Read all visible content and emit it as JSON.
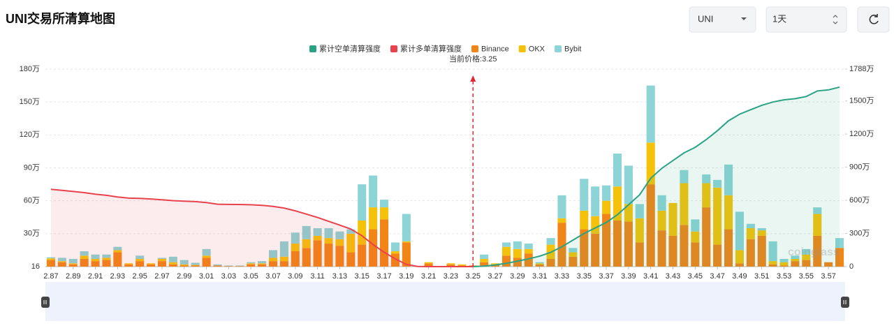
{
  "header": {
    "title": "UNI交易所清算地图",
    "symbol": "UNI",
    "interval": "1天"
  },
  "chart_data": {
    "type": "bar",
    "x": [
      2.87,
      2.88,
      2.89,
      2.9,
      2.91,
      2.92,
      2.93,
      2.94,
      2.95,
      2.96,
      2.97,
      2.98,
      2.99,
      3.0,
      3.01,
      3.02,
      3.03,
      3.04,
      3.05,
      3.06,
      3.07,
      3.08,
      3.09,
      3.1,
      3.11,
      3.12,
      3.13,
      3.14,
      3.15,
      3.16,
      3.17,
      3.18,
      3.19,
      3.2,
      3.21,
      3.22,
      3.23,
      3.24,
      3.25,
      3.26,
      3.27,
      3.28,
      3.29,
      3.3,
      3.31,
      3.32,
      3.33,
      3.34,
      3.35,
      3.36,
      3.37,
      3.38,
      3.39,
      3.4,
      3.41,
      3.42,
      3.43,
      3.44,
      3.45,
      3.46,
      3.47,
      3.48,
      3.49,
      3.5,
      3.51,
      3.52,
      3.53,
      3.54,
      3.55,
      3.56,
      3.57,
      3.58
    ],
    "xlim": [
      2.865,
      3.585
    ],
    "xticks": [
      2.87,
      2.89,
      2.91,
      2.93,
      2.95,
      2.97,
      2.99,
      3.01,
      3.03,
      3.05,
      3.07,
      3.09,
      3.11,
      3.13,
      3.15,
      3.17,
      3.19,
      3.21,
      3.23,
      3.25,
      3.27,
      3.29,
      3.31,
      3.33,
      3.35,
      3.37,
      3.39,
      3.41,
      3.43,
      3.45,
      3.47,
      3.49,
      3.51,
      3.53,
      3.55,
      3.57
    ],
    "ylim": [
      16,
      1800000
    ],
    "yticks": [
      16,
      {
        "value": 300000,
        "label": "30万"
      },
      {
        "value": 600000,
        "label": "60万"
      },
      {
        "value": 900000,
        "label": "90万"
      },
      {
        "value": 1200000,
        "label": "120万"
      },
      {
        "value": 1500000,
        "label": "150万"
      },
      {
        "value": 1800000,
        "label": "180万"
      }
    ],
    "y2lim": [
      0,
      17880000
    ],
    "y2ticks": [
      0,
      {
        "value": 3000000,
        "label": "300万"
      },
      {
        "value": 6000000,
        "label": "600万"
      },
      {
        "value": 9000000,
        "label": "900万"
      },
      {
        "value": 12000000,
        "label": "1200万"
      },
      {
        "value": 15000000,
        "label": "1500万"
      },
      {
        "value": 17880000,
        "label": "1788万"
      }
    ],
    "grid": true,
    "current_price": 3.25,
    "current_price_label": "当前价格:3.25",
    "watermark": "coinglass",
    "series": [
      {
        "name": "累计空单清算强度",
        "type": "line",
        "axis": "y2",
        "color": "#2aa384",
        "fill": "rgba(42,163,132,0.10)",
        "values": [
          null,
          null,
          null,
          null,
          null,
          null,
          null,
          null,
          null,
          null,
          null,
          null,
          null,
          null,
          null,
          null,
          null,
          null,
          null,
          null,
          null,
          null,
          null,
          null,
          null,
          null,
          null,
          null,
          null,
          null,
          null,
          null,
          null,
          null,
          null,
          null,
          null,
          null,
          0,
          50000,
          150000,
          300000,
          500000,
          700000,
          950000,
          1300000,
          1800000,
          2400000,
          3000000,
          3500000,
          4000000,
          4700000,
          5600000,
          6500000,
          8000000,
          8900000,
          9600000,
          10300000,
          10800000,
          11500000,
          12300000,
          13200000,
          13800000,
          14200000,
          14600000,
          14900000,
          15100000,
          15200000,
          15400000,
          15900000,
          16000000,
          16250000
        ]
      },
      {
        "name": "累计多单清算强度",
        "type": "line",
        "axis": "y2",
        "color": "#e8424d",
        "fill": "rgba(232,66,77,0.10)",
        "values": [
          7000000,
          6900000,
          6800000,
          6700000,
          6550000,
          6450000,
          6300000,
          6200000,
          6170000,
          6120000,
          6050000,
          5970000,
          5920000,
          5880000,
          5800000,
          5650000,
          5630000,
          5620000,
          5600000,
          5550000,
          5450000,
          5300000,
          5050000,
          4750000,
          4450000,
          4100000,
          3750000,
          3400000,
          2800000,
          2000000,
          1300000,
          700000,
          200000,
          20000,
          0,
          0,
          0,
          0,
          0,
          null,
          null,
          null,
          null,
          null,
          null,
          null,
          null,
          null,
          null,
          null,
          null,
          null,
          null,
          null,
          null,
          null,
          null,
          null,
          null,
          null,
          null,
          null,
          null,
          null,
          null,
          null,
          null,
          null,
          null,
          null,
          null,
          null
        ]
      },
      {
        "name": "Binance",
        "type": "bar",
        "color": "#f28518",
        "values": [
          60000,
          40000,
          20000,
          70000,
          50000,
          60000,
          130000,
          20000,
          50000,
          20000,
          50000,
          20000,
          10000,
          10000,
          80000,
          10000,
          5000,
          5000,
          20000,
          20000,
          50000,
          50000,
          140000,
          170000,
          240000,
          210000,
          190000,
          130000,
          200000,
          340000,
          430000,
          120000,
          220000,
          0,
          30000,
          0,
          20000,
          10000,
          10000,
          40000,
          20000,
          100000,
          80000,
          120000,
          20000,
          70000,
          400000,
          90000,
          340000,
          300000,
          480000,
          420000,
          410000,
          220000,
          750000,
          330000,
          280000,
          380000,
          220000,
          540000,
          200000,
          340000,
          30000,
          250000,
          280000,
          20000,
          10000,
          50000,
          60000,
          280000,
          40000,
          170000
        ]
      },
      {
        "name": "OKX",
        "type": "bar",
        "color": "#f5c20b",
        "values": [
          15000,
          10000,
          10000,
          30000,
          20000,
          20000,
          20000,
          10000,
          20000,
          10000,
          20000,
          20000,
          10000,
          5000,
          20000,
          0,
          0,
          0,
          10000,
          10000,
          30000,
          40000,
          70000,
          80000,
          40000,
          50000,
          60000,
          170000,
          220000,
          200000,
          110000,
          20000,
          10000,
          0,
          10000,
          0,
          10000,
          10000,
          0,
          30000,
          10000,
          80000,
          80000,
          40000,
          10000,
          130000,
          40000,
          40000,
          170000,
          160000,
          120000,
          310000,
          160000,
          220000,
          380000,
          180000,
          300000,
          380000,
          100000,
          220000,
          520000,
          310000,
          120000,
          100000,
          50000,
          30000,
          30000,
          20000,
          50000,
          200000,
          0,
          0
        ]
      },
      {
        "name": "Bybit",
        "type": "bar",
        "color": "#8dd4d6",
        "values": [
          10000,
          30000,
          40000,
          40000,
          40000,
          30000,
          30000,
          0,
          30000,
          0,
          10000,
          50000,
          40000,
          20000,
          60000,
          10000,
          5000,
          5000,
          10000,
          20000,
          70000,
          140000,
          100000,
          120000,
          70000,
          90000,
          70000,
          40000,
          330000,
          290000,
          70000,
          80000,
          250000,
          0,
          0,
          0,
          0,
          0,
          0,
          40000,
          0,
          40000,
          70000,
          50000,
          10000,
          60000,
          210000,
          40000,
          290000,
          270000,
          140000,
          300000,
          350000,
          130000,
          520000,
          140000,
          0,
          120000,
          110000,
          80000,
          70000,
          280000,
          350000,
          40000,
          20000,
          180000,
          30000,
          30000,
          50000,
          60000,
          0,
          90000
        ]
      }
    ]
  }
}
